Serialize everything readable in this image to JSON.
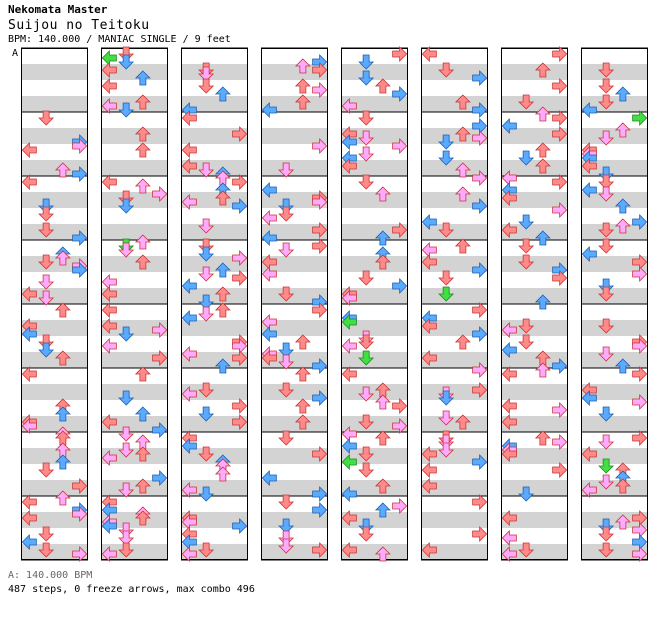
{
  "header": {
    "artist": "Nekomata Master",
    "title": "Suijou no Teitoku",
    "info": "BPM: 140.000 / MANIAC SINGLE / 9 feet"
  },
  "marker": "A",
  "footer": {
    "bpm_note": "A: 140.000 BPM",
    "stats": "487 steps, 0 freeze arrows, max combo 496"
  },
  "colors": {
    "left_arrow": "#ff8a8a",
    "down_arrow": "#ff8a8a",
    "up_arrow": "#ff8a8a",
    "right_arrow": "#ff8a8a",
    "quarter_arrow": "#ff8a8a",
    "eighth_arrow": "#5aaaff",
    "sixteenth_arrow": "#ffaaff",
    "special_arrow": "#44dd44",
    "stripe": "#d3d3d3"
  },
  "chart": {
    "columns": 8,
    "measures_per_column": 8,
    "lanes": [
      "left",
      "down",
      "up",
      "right"
    ]
  }
}
